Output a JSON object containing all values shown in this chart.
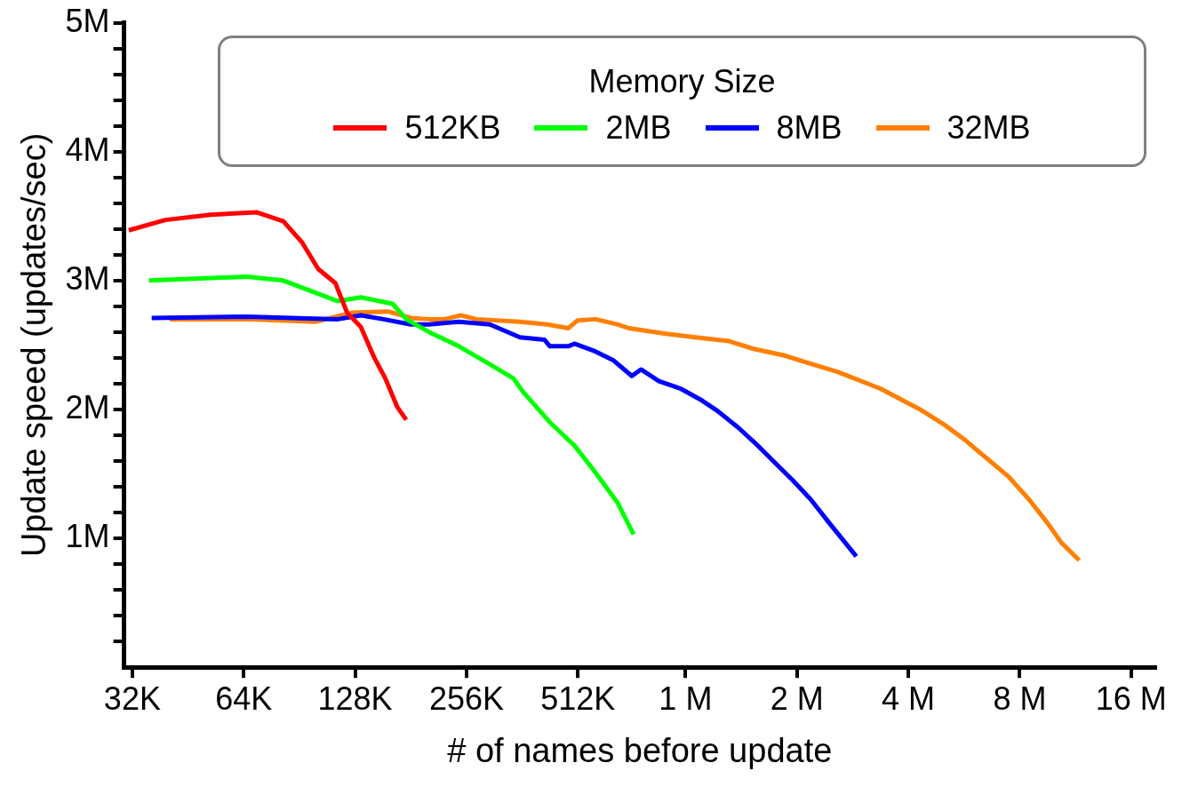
{
  "chart_data": {
    "type": "line",
    "xlabel": "# of names before update",
    "ylabel": "Update speed (updates/sec)",
    "legend_title": "Memory Size",
    "legend": "top right",
    "log": "x",
    "marker": "none",
    "line_style": "solid",
    "grid": false,
    "xlim": [
      30400,
      18600000
    ],
    "ylim": [
      0,
      5000000
    ],
    "xticks": [
      {
        "value": 32000,
        "label": "32K"
      },
      {
        "value": 64000,
        "label": "64K"
      },
      {
        "value": 128000,
        "label": "128K"
      },
      {
        "value": 256000,
        "label": "256K"
      },
      {
        "value": 512000,
        "label": "512K"
      },
      {
        "value": 1000000,
        "label": "1 M"
      },
      {
        "value": 2000000,
        "label": "2 M"
      },
      {
        "value": 4000000,
        "label": "4 M"
      },
      {
        "value": 8000000,
        "label": "8 M"
      },
      {
        "value": 16000000,
        "label": "16 M"
      }
    ],
    "yticks": [
      {
        "value": 200000,
        "label": null
      },
      {
        "value": 400000,
        "label": null
      },
      {
        "value": 600000,
        "label": null
      },
      {
        "value": 800000,
        "label": null
      },
      {
        "value": 1000000,
        "label": "1M"
      },
      {
        "value": 1200000,
        "label": null
      },
      {
        "value": 1400000,
        "label": null
      },
      {
        "value": 1600000,
        "label": null
      },
      {
        "value": 1800000,
        "label": null
      },
      {
        "value": 2000000,
        "label": "2M"
      },
      {
        "value": 2200000,
        "label": null
      },
      {
        "value": 2400000,
        "label": null
      },
      {
        "value": 2600000,
        "label": null
      },
      {
        "value": 2800000,
        "label": null
      },
      {
        "value": 3000000,
        "label": "3M"
      },
      {
        "value": 3200000,
        "label": null
      },
      {
        "value": 3400000,
        "label": null
      },
      {
        "value": 3600000,
        "label": null
      },
      {
        "value": 3800000,
        "label": null
      },
      {
        "value": 4000000,
        "label": "4M"
      },
      {
        "value": 4200000,
        "label": null
      },
      {
        "value": 4400000,
        "label": null
      },
      {
        "value": 4600000,
        "label": null
      },
      {
        "value": 4800000,
        "label": null
      },
      {
        "value": 5000000,
        "label": "5M"
      }
    ],
    "series": [
      {
        "name": "512KB",
        "color": "#ff0000",
        "x": [
          31300,
          39300,
          52100,
          69200,
          81900,
          91800,
          101700,
          113200,
          121800,
          132600,
          144300,
          154500,
          166300,
          175900
        ],
        "values": [
          3390000,
          3470000,
          3510000,
          3530000,
          3460000,
          3300000,
          3090000,
          2980000,
          2750000,
          2640000,
          2400000,
          2240000,
          2020000,
          1920000
        ]
      },
      {
        "name": "2MB",
        "color": "#00ff00",
        "x": [
          35500,
          65200,
          81900,
          115000,
          132600,
          161600,
          175900,
          203000,
          244000,
          296000,
          343000,
          363000,
          430000,
          501000,
          561000,
          654000,
          724000
        ],
        "values": [
          3000000,
          3030000,
          3000000,
          2840000,
          2870000,
          2820000,
          2700000,
          2600000,
          2490000,
          2350000,
          2240000,
          2140000,
          1900000,
          1720000,
          1540000,
          1280000,
          1030000
        ]
      },
      {
        "name": "8MB",
        "color": "#0000ff",
        "x": [
          36100,
          65200,
          115000,
          132600,
          152700,
          181000,
          203000,
          244000,
          296000,
          357000,
          416000,
          430000,
          482000,
          501000,
          571000,
          639000,
          716000,
          758000,
          848000,
          972000,
          1107000,
          1218000,
          1387000,
          1554000,
          1740000,
          1949000,
          2182000,
          2444000,
          2894000
        ],
        "values": [
          2710000,
          2720000,
          2700000,
          2730000,
          2700000,
          2660000,
          2660000,
          2680000,
          2660000,
          2560000,
          2540000,
          2490000,
          2490000,
          2510000,
          2450000,
          2380000,
          2260000,
          2310000,
          2220000,
          2160000,
          2070000,
          1990000,
          1860000,
          1730000,
          1590000,
          1450000,
          1300000,
          1120000,
          860000
        ]
      },
      {
        "name": "32MB",
        "color": "#ff7f00",
        "x": [
          40400,
          65200,
          99900,
          125300,
          157000,
          181000,
          203000,
          223000,
          247000,
          273000,
          357000,
          423000,
          482000,
          510000,
          571000,
          654000,
          704000,
          868000,
          1063000,
          1311000,
          1528000,
          1841000,
          2146000,
          2585000,
          3373000,
          4303000,
          5013000,
          5711000,
          6393000,
          7451000,
          8484000,
          9503000,
          10342000,
          11580000
        ],
        "values": [
          2700000,
          2700000,
          2680000,
          2750000,
          2760000,
          2710000,
          2700000,
          2700000,
          2730000,
          2700000,
          2680000,
          2660000,
          2630000,
          2690000,
          2700000,
          2660000,
          2630000,
          2590000,
          2560000,
          2530000,
          2470000,
          2420000,
          2360000,
          2290000,
          2160000,
          2000000,
          1880000,
          1760000,
          1640000,
          1480000,
          1300000,
          1120000,
          970000,
          830000
        ]
      }
    ]
  }
}
